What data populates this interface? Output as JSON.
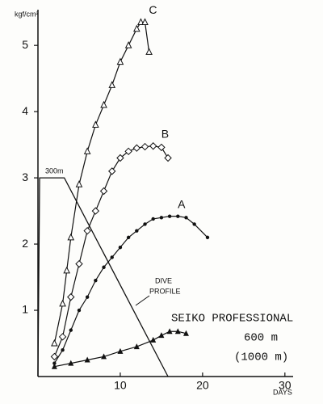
{
  "chart_data": {
    "type": "line",
    "y_unit": "kgf/cm²",
    "x_label": "DAYS",
    "xlim": [
      0,
      31
    ],
    "ylim": [
      0,
      5.6
    ],
    "xticks": [
      10,
      20,
      30
    ],
    "yticks": [
      1,
      2,
      3,
      4,
      5
    ],
    "series": [
      {
        "name": "C",
        "color": "#111111",
        "marker": "triangle-open",
        "x": [
          2,
          3,
          3.5,
          4,
          5,
          6,
          7,
          8,
          9,
          10,
          11,
          12,
          12.5,
          13,
          13.5
        ],
        "values": [
          0.5,
          1.1,
          1.6,
          2.1,
          2.9,
          3.4,
          3.8,
          4.1,
          4.4,
          4.75,
          5.0,
          5.25,
          5.35,
          5.35,
          4.9
        ]
      },
      {
        "name": "B",
        "color": "#111111",
        "marker": "diamond",
        "x": [
          2,
          3,
          4,
          5,
          6,
          7,
          8,
          9,
          10,
          11,
          12,
          13,
          14,
          15,
          15.8
        ],
        "values": [
          0.3,
          0.6,
          1.2,
          1.7,
          2.2,
          2.5,
          2.8,
          3.1,
          3.3,
          3.4,
          3.45,
          3.47,
          3.48,
          3.46,
          3.3
        ]
      },
      {
        "name": "A",
        "color": "#111111",
        "marker": "dot",
        "x": [
          2,
          3,
          4,
          5,
          6,
          7,
          8,
          9,
          10,
          11,
          12,
          13,
          14,
          15,
          16,
          17,
          18,
          19,
          20.6
        ],
        "values": [
          0.2,
          0.4,
          0.7,
          1.0,
          1.2,
          1.45,
          1.65,
          1.8,
          1.95,
          2.1,
          2.2,
          2.3,
          2.38,
          2.4,
          2.42,
          2.42,
          2.4,
          2.3,
          2.1
        ]
      },
      {
        "color": "#111111",
        "marker": "triangle",
        "x": [
          2,
          4,
          6,
          8,
          10,
          12,
          14,
          15,
          16,
          17,
          18
        ],
        "values": [
          0.15,
          0.2,
          0.25,
          0.3,
          0.38,
          0.45,
          0.55,
          0.62,
          0.68,
          0.68,
          0.65
        ]
      }
    ],
    "dive_profile": {
      "label": [
        "DIVE",
        "PROFILE"
      ],
      "depth_label": "300m",
      "x": [
        0,
        0.2,
        3.2,
        15.8
      ],
      "values": [
        0,
        3,
        3,
        0
      ]
    },
    "annotation": [
      "SEIKO PROFESSIONAL",
      "600 m",
      "(1000 m)"
    ]
  }
}
